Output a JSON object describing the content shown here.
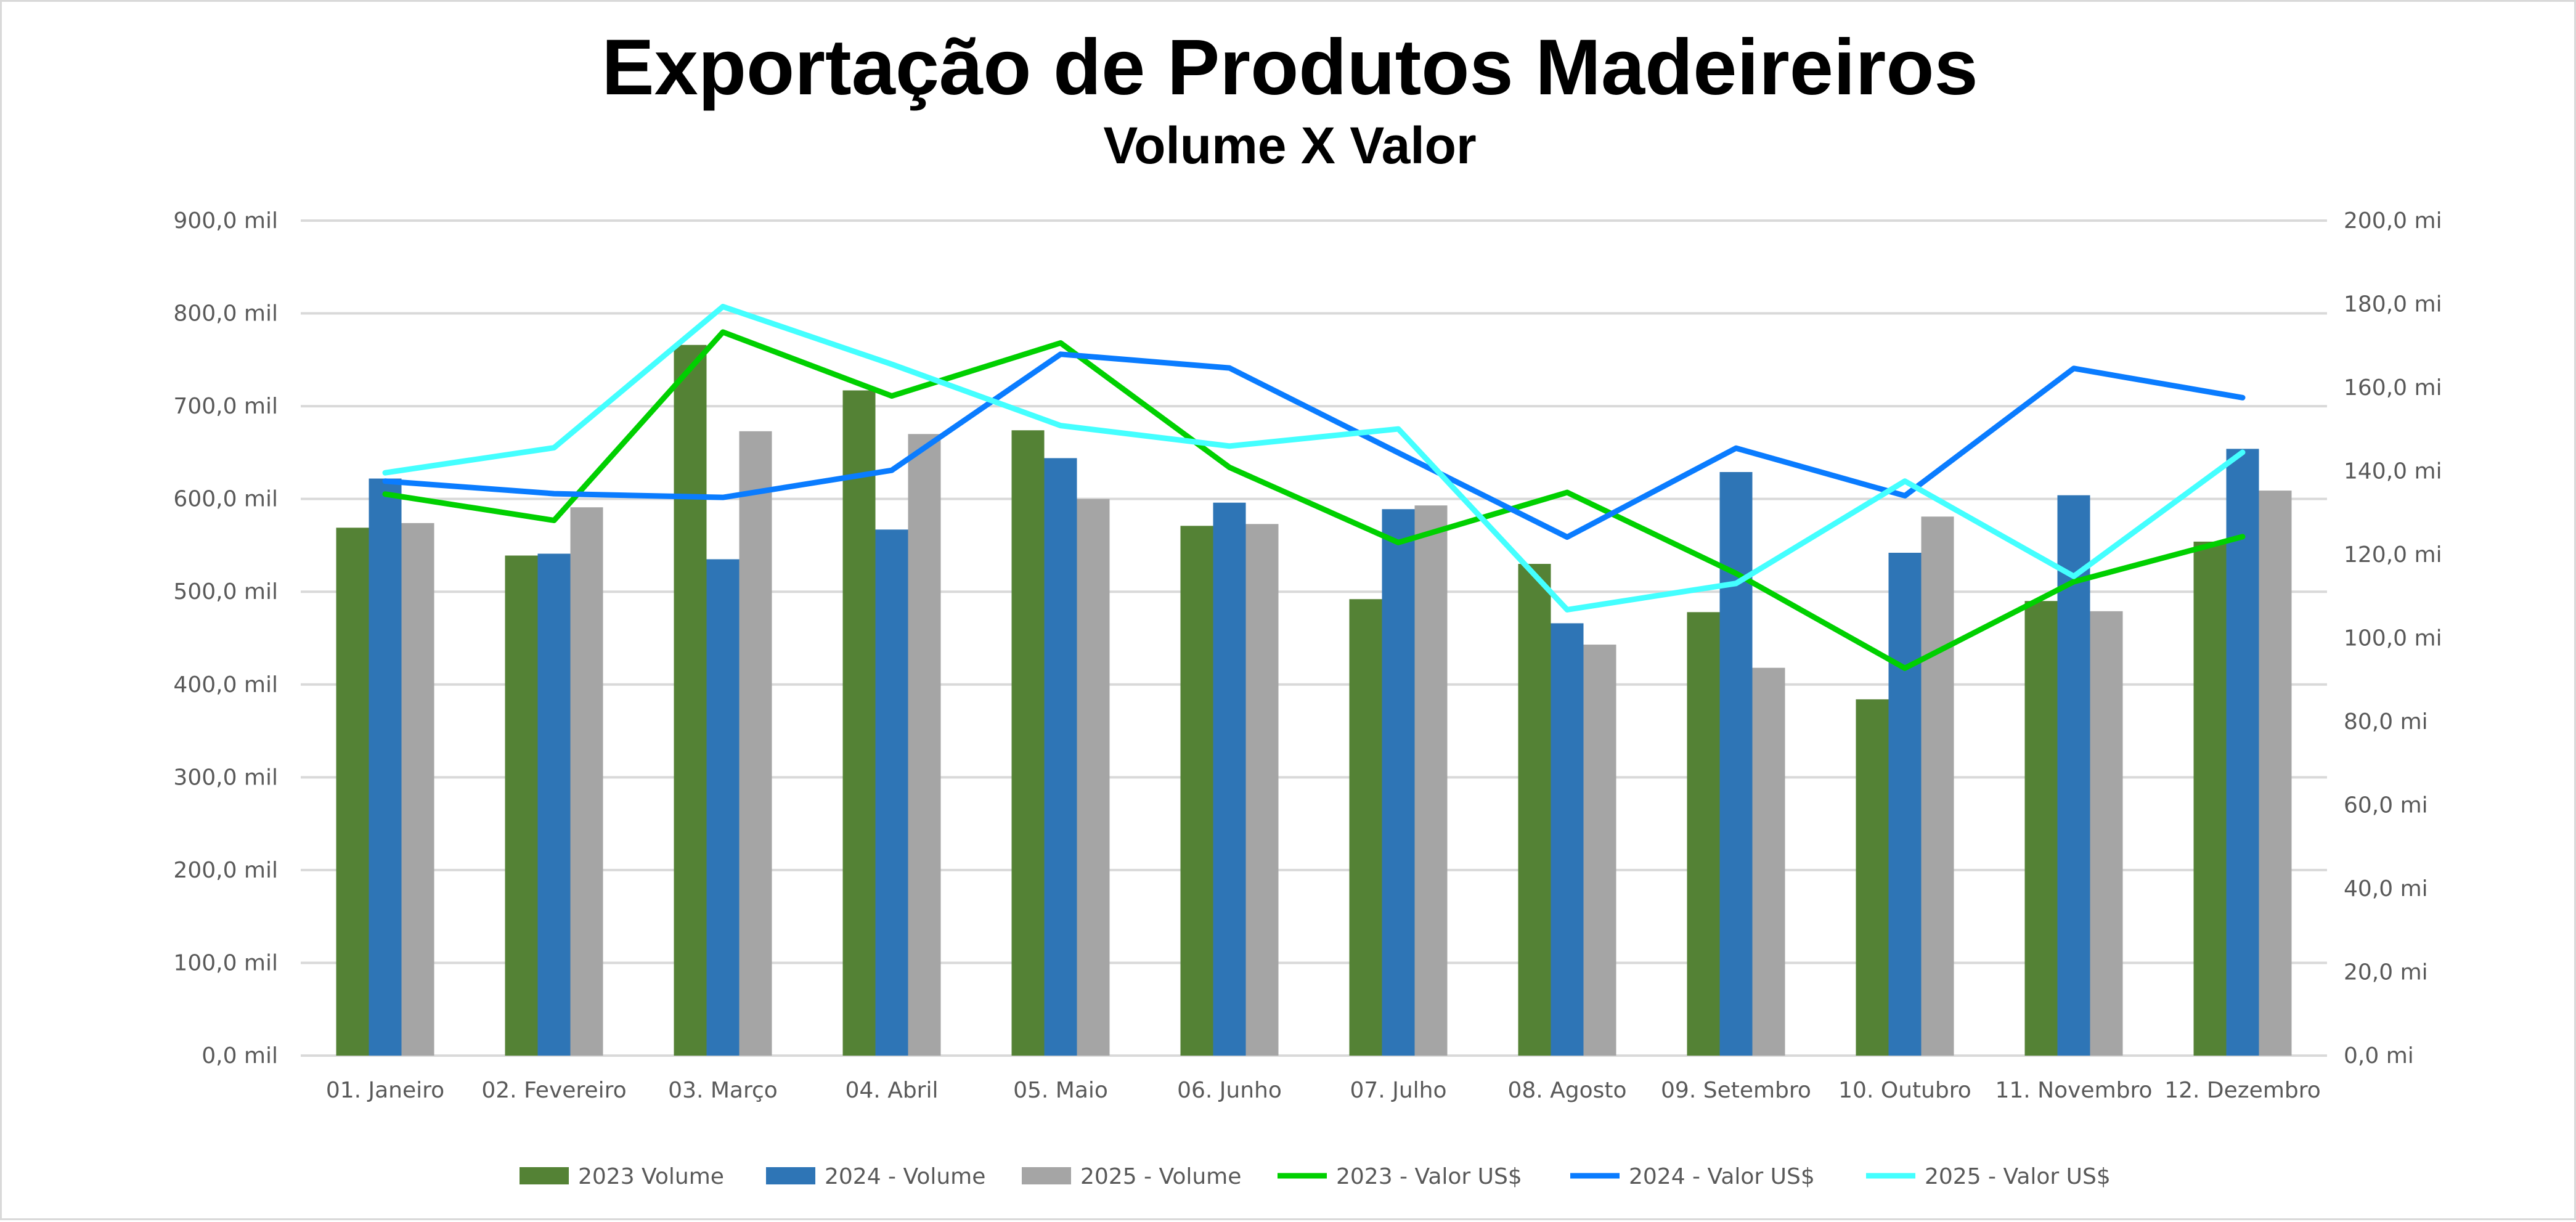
{
  "chart_data": {
    "type": "bar",
    "title": "Exportação de Produtos Madeireiros",
    "subtitle": "Volume X Valor",
    "categories": [
      "01. Janeiro",
      "02. Fevereiro",
      "03. Março",
      "04. Abril",
      "05. Maio",
      "06. Junho",
      "07. Julho",
      "08. Agosto",
      "09. Setembro",
      "10. Outubro",
      "11. Novembro",
      "12. Dezembro"
    ],
    "y_left": {
      "ticks": [
        "0,0 mil",
        "100,0 mil",
        "200,0 mil",
        "300,0 mil",
        "400,0 mil",
        "500,0 mil",
        "600,0 mil",
        "700,0 mil",
        "800,0 mil",
        "900,0 mil"
      ],
      "ylim": [
        0,
        900
      ]
    },
    "y_right": {
      "ticks": [
        "0,0 mi",
        "20,0 mi",
        "40,0 mi",
        "60,0 mi",
        "80,0 mi",
        "100,0 mi",
        "120,0 mi",
        "140,0 mi",
        "160,0 mi",
        "180,0 mi",
        "200,0 mi"
      ],
      "ylim": [
        0,
        200
      ]
    },
    "grid": true,
    "legend_position": "bottom",
    "bar_series": [
      {
        "name": "2023 Volume",
        "color": "#548235",
        "axis": "left",
        "values": [
          569,
          539,
          766,
          717,
          674,
          571,
          492,
          530,
          478,
          384,
          490,
          554
        ]
      },
      {
        "name": "2024 - Volume",
        "color": "#2E75B6",
        "axis": "left",
        "values": [
          622,
          541,
          535,
          567,
          644,
          596,
          589,
          466,
          629,
          542,
          604,
          654
        ]
      },
      {
        "name": "2025 - Volume",
        "color": "#A5A5A5",
        "axis": "left",
        "values": [
          574,
          591,
          673,
          670,
          600,
          573,
          593,
          443,
          418,
          581,
          479,
          609
        ]
      }
    ],
    "line_series": [
      {
        "name": "2023 - Valor US$",
        "color": "#00D000",
        "axis": "right",
        "values": [
          134.5,
          128.2,
          173.3,
          158.0,
          170.7,
          140.9,
          122.9,
          134.9,
          115.5,
          92.8,
          113.5,
          124.3
        ]
      },
      {
        "name": "2024 - Valor US$",
        "color": "#0A7CFF",
        "axis": "right",
        "values": [
          137.6,
          134.6,
          133.7,
          140.2,
          168.0,
          164.7,
          144.4,
          124.2,
          145.5,
          134.1,
          164.6,
          157.6
        ]
      },
      {
        "name": "2025 - Valor US$",
        "color": "#44FFFF",
        "axis": "right",
        "values": [
          139.6,
          145.6,
          179.4,
          165.6,
          150.9,
          146.0,
          150.1,
          106.8,
          113.1,
          137.6,
          114.8,
          144.5
        ]
      }
    ]
  }
}
